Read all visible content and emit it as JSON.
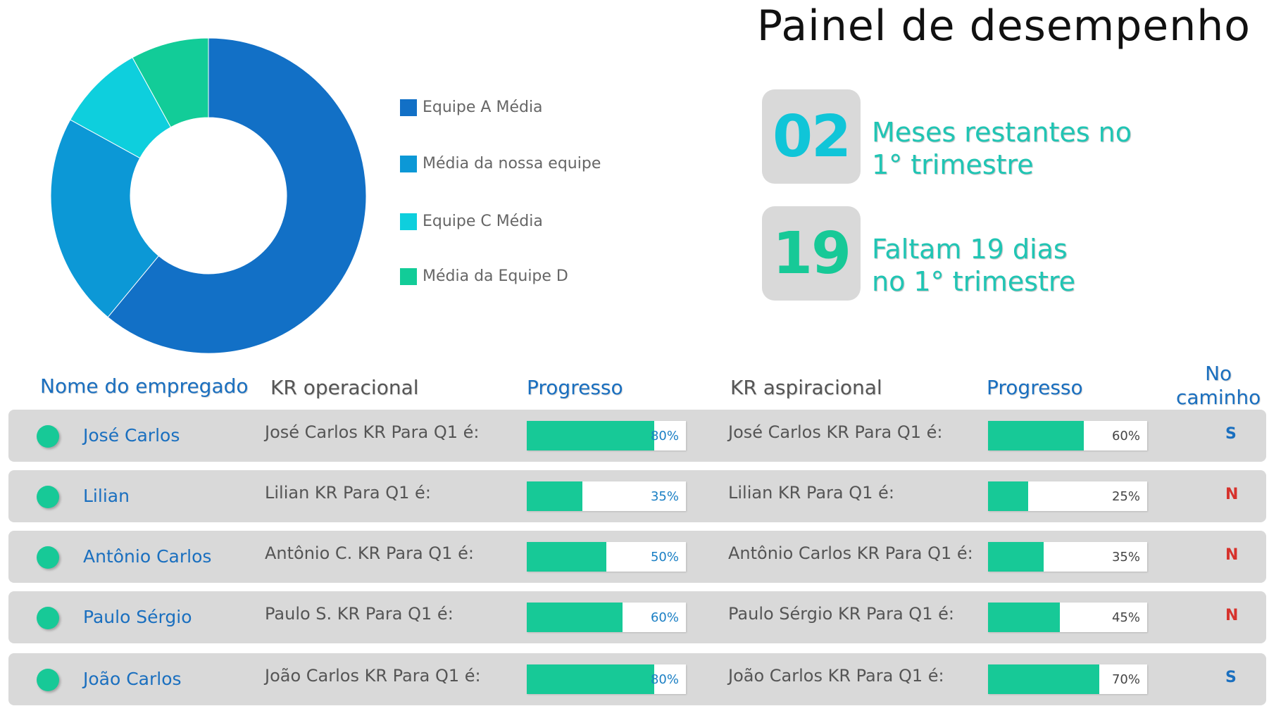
{
  "title": "Painel de desempenho",
  "chart_data": {
    "type": "pie",
    "variant": "donut",
    "series": [
      {
        "name": "Equipe A Média",
        "value": 61,
        "color": "#1270c6"
      },
      {
        "name": "Média da nossa equipe",
        "value": 22,
        "color": "#0c98d6"
      },
      {
        "name": "Equipe C Média",
        "value": 9,
        "color": "#0ecfdd"
      },
      {
        "name": "Média da Equipe D",
        "value": 8,
        "color": "#12cc98"
      }
    ],
    "legend_position": "right"
  },
  "kpis": [
    {
      "number": "02",
      "line1": "Meses restantes no",
      "line2": "1° trimestre",
      "number_color": "#10c5d8"
    },
    {
      "number": "19",
      "line1": "Faltam 19 dias",
      "line2": "no 1° trimestre",
      "number_color": "#17c997"
    }
  ],
  "table": {
    "headers": {
      "employee": "Nome do empregado",
      "kr_operational": "KR operacional",
      "progress_operational": "Progresso",
      "kr_aspirational": "KR aspiracional",
      "progress_aspirational": "Progresso",
      "on_track_line1": "No",
      "on_track_line2": "caminho"
    },
    "rows": [
      {
        "name": "José Carlos",
        "kr_op": "José Carlos KR Para Q1 é:",
        "op_progress": 0.8,
        "op_label": "80%",
        "kr_asp": "José Carlos KR Para Q1 é:",
        "asp_progress": 0.6,
        "asp_label": "60%",
        "on_track": "S",
        "on_track_color": "#1a6fbf"
      },
      {
        "name": "Lilian",
        "kr_op": "Lilian KR Para Q1 é:",
        "op_progress": 0.35,
        "op_label": "35%",
        "kr_asp": "Lilian KR Para Q1 é:",
        "asp_progress": 0.25,
        "asp_label": "25%",
        "on_track": "N",
        "on_track_color": "#d6322c"
      },
      {
        "name": "Antônio Carlos",
        "kr_op": "Antônio C. KR Para Q1 é:",
        "op_progress": 0.5,
        "op_label": "50%",
        "kr_asp": "Antônio Carlos KR Para Q1 é:",
        "asp_progress": 0.35,
        "asp_label": "35%",
        "on_track": "N",
        "on_track_color": "#d6322c"
      },
      {
        "name": "Paulo Sérgio",
        "kr_op": "Paulo S. KR Para Q1 é:",
        "op_progress": 0.6,
        "op_label": "60%",
        "kr_asp": "Paulo Sérgio KR Para Q1 é:",
        "asp_progress": 0.45,
        "asp_label": "45%",
        "on_track": "N",
        "on_track_color": "#d6322c"
      },
      {
        "name": "João Carlos",
        "kr_op": "João Carlos KR Para Q1 é:",
        "op_progress": 0.8,
        "op_label": "80%",
        "kr_asp": "João Carlos KR Para Q1 é:",
        "asp_progress": 0.7,
        "asp_label": "70%",
        "on_track": "S",
        "on_track_color": "#1a6fbf"
      }
    ]
  }
}
